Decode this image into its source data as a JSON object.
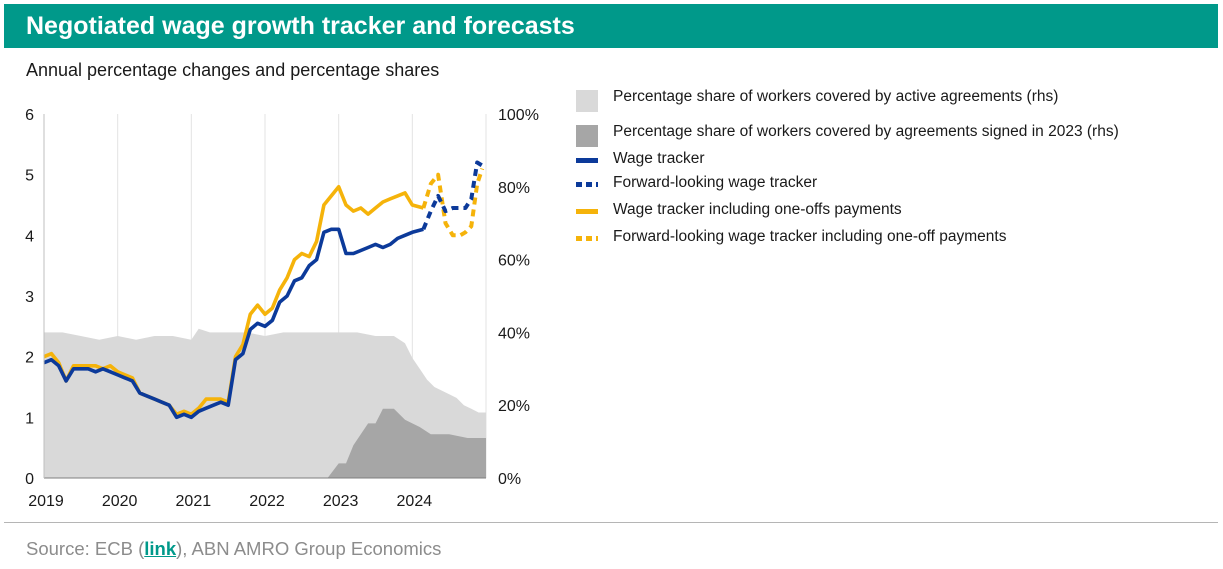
{
  "header": {
    "title": "Negotiated wage growth tracker and forecasts"
  },
  "subtitle": "Annual percentage changes and percentage shares",
  "source": {
    "prefix": "Source: ECB (",
    "link_label": "link",
    "suffix": "), ABN AMRO Group Economics"
  },
  "legend": [
    {
      "label": "Percentage share of workers covered by active agreements (rhs)",
      "kind": "area",
      "color": "#d9d9d9"
    },
    {
      "label": "Percentage share of workers covered by agreements signed in 2023 (rhs)",
      "kind": "area",
      "color": "#a6a6a6"
    },
    {
      "label": "Wage tracker",
      "kind": "line",
      "color": "#0c3a9a"
    },
    {
      "label": "Forward-looking wage tracker",
      "kind": "dash",
      "color": "#0c3a9a"
    },
    {
      "label": "Wage tracker including one-offs payments",
      "kind": "line",
      "color": "#f5b30a"
    },
    {
      "label": "Forward-looking wage tracker including one-off payments",
      "kind": "dash",
      "color": "#f5b30a"
    }
  ],
  "chart_data": {
    "type": "line",
    "x_ticks": [
      "2019",
      "2020",
      "2021",
      "2022",
      "2023",
      "2024"
    ],
    "x_range": [
      2019.0,
      2025.0
    ],
    "y_left": {
      "range": [
        0,
        6
      ],
      "ticks": [
        "0",
        "1",
        "2",
        "3",
        "4",
        "5",
        "6"
      ]
    },
    "y_right": {
      "range": [
        0,
        100
      ],
      "ticks": [
        "0%",
        "20%",
        "40%",
        "60%",
        "80%",
        "100%"
      ]
    },
    "grid_vertical": true,
    "series": [
      {
        "name": "Percentage share of workers covered by active agreements (rhs)",
        "type": "area",
        "axis": "right",
        "color": "#d9d9d9",
        "x": [
          2019.0,
          2019.25,
          2019.5,
          2019.75,
          2020.0,
          2020.25,
          2020.5,
          2020.75,
          2021.0,
          2021.1,
          2021.25,
          2021.5,
          2021.75,
          2022.0,
          2022.25,
          2022.5,
          2022.75,
          2023.0,
          2023.25,
          2023.5,
          2023.75,
          2023.9,
          2024.0,
          2024.1,
          2024.2,
          2024.3,
          2024.4,
          2024.5,
          2024.6,
          2024.7,
          2024.8,
          2024.9,
          2025.0
        ],
        "y": [
          40,
          40,
          39,
          38,
          39,
          38,
          39,
          39,
          38,
          41,
          40,
          40,
          40,
          39,
          40,
          40,
          40,
          40,
          40,
          39,
          39,
          37,
          33,
          30,
          27,
          25,
          24,
          23,
          22,
          20,
          19,
          18,
          18
        ]
      },
      {
        "name": "Percentage share of workers covered by agreements signed in 2023 (rhs)",
        "type": "area",
        "axis": "right",
        "color": "#a6a6a6",
        "x": [
          2022.85,
          2023.0,
          2023.1,
          2023.2,
          2023.3,
          2023.4,
          2023.5,
          2023.6,
          2023.75,
          2023.9,
          2024.0,
          2024.1,
          2024.25,
          2024.5,
          2024.75,
          2025.0
        ],
        "y": [
          0,
          4,
          4,
          9,
          12,
          15,
          15,
          19,
          19,
          16,
          15,
          14,
          12,
          12,
          11,
          11
        ]
      },
      {
        "name": "Wage tracker including one-offs payments",
        "type": "line",
        "axis": "left",
        "color": "#f5b30a",
        "x": [
          2019.0,
          2019.1,
          2019.2,
          2019.3,
          2019.4,
          2019.5,
          2019.6,
          2019.7,
          2019.8,
          2019.9,
          2020.0,
          2020.1,
          2020.2,
          2020.3,
          2020.4,
          2020.5,
          2020.6,
          2020.7,
          2020.8,
          2020.9,
          2021.0,
          2021.1,
          2021.2,
          2021.3,
          2021.4,
          2021.5,
          2021.6,
          2021.7,
          2021.8,
          2021.9,
          2022.0,
          2022.1,
          2022.2,
          2022.3,
          2022.4,
          2022.5,
          2022.6,
          2022.7,
          2022.8,
          2022.9,
          2023.0,
          2023.1,
          2023.2,
          2023.3,
          2023.4,
          2023.5,
          2023.6,
          2023.7,
          2023.8,
          2023.9,
          2024.0,
          2024.15
        ],
        "y": [
          2.0,
          2.05,
          1.9,
          1.6,
          1.85,
          1.85,
          1.85,
          1.85,
          1.8,
          1.85,
          1.75,
          1.7,
          1.65,
          1.4,
          1.35,
          1.3,
          1.25,
          1.2,
          1.05,
          1.1,
          1.05,
          1.15,
          1.3,
          1.3,
          1.3,
          1.25,
          2.0,
          2.2,
          2.7,
          2.85,
          2.7,
          2.8,
          3.1,
          3.3,
          3.6,
          3.7,
          3.65,
          3.9,
          4.5,
          4.65,
          4.8,
          4.5,
          4.4,
          4.45,
          4.35,
          4.45,
          4.55,
          4.6,
          4.65,
          4.7,
          4.5,
          4.45
        ]
      },
      {
        "name": "Wage tracker",
        "type": "line",
        "axis": "left",
        "color": "#0c3a9a",
        "x": [
          2019.0,
          2019.1,
          2019.2,
          2019.3,
          2019.4,
          2019.5,
          2019.6,
          2019.7,
          2019.8,
          2019.9,
          2020.0,
          2020.1,
          2020.2,
          2020.3,
          2020.4,
          2020.5,
          2020.6,
          2020.7,
          2020.8,
          2020.9,
          2021.0,
          2021.1,
          2021.2,
          2021.3,
          2021.4,
          2021.5,
          2021.6,
          2021.7,
          2021.8,
          2021.9,
          2022.0,
          2022.1,
          2022.2,
          2022.3,
          2022.4,
          2022.5,
          2022.6,
          2022.7,
          2022.8,
          2022.9,
          2023.0,
          2023.1,
          2023.2,
          2023.3,
          2023.4,
          2023.5,
          2023.6,
          2023.7,
          2023.8,
          2023.9,
          2024.0,
          2024.15
        ],
        "y": [
          1.9,
          1.95,
          1.85,
          1.6,
          1.8,
          1.8,
          1.8,
          1.75,
          1.8,
          1.75,
          1.7,
          1.65,
          1.6,
          1.4,
          1.35,
          1.3,
          1.25,
          1.2,
          1.0,
          1.05,
          1.0,
          1.1,
          1.15,
          1.2,
          1.25,
          1.2,
          1.95,
          2.05,
          2.45,
          2.55,
          2.5,
          2.6,
          2.9,
          3.0,
          3.25,
          3.3,
          3.5,
          3.6,
          4.05,
          4.1,
          4.1,
          3.7,
          3.7,
          3.75,
          3.8,
          3.85,
          3.8,
          3.85,
          3.95,
          4.0,
          4.05,
          4.1
        ]
      },
      {
        "name": "Forward-looking wage tracker including one-off payments",
        "type": "dashed-line",
        "axis": "left",
        "color": "#f5b30a",
        "x": [
          2024.15,
          2024.25,
          2024.35,
          2024.45,
          2024.55,
          2024.65,
          2024.72,
          2024.8,
          2024.88,
          2024.95
        ],
        "y": [
          4.45,
          4.85,
          5.0,
          4.2,
          4.0,
          4.0,
          4.05,
          4.15,
          4.85,
          5.1
        ]
      },
      {
        "name": "Forward-looking wage tracker",
        "type": "dashed-line",
        "axis": "left",
        "color": "#0c3a9a",
        "x": [
          2024.15,
          2024.25,
          2024.35,
          2024.45,
          2024.55,
          2024.65,
          2024.72,
          2024.8,
          2024.88,
          2024.95
        ],
        "y": [
          4.1,
          4.4,
          4.65,
          4.4,
          4.45,
          4.45,
          4.45,
          4.6,
          5.2,
          5.15
        ]
      }
    ]
  }
}
